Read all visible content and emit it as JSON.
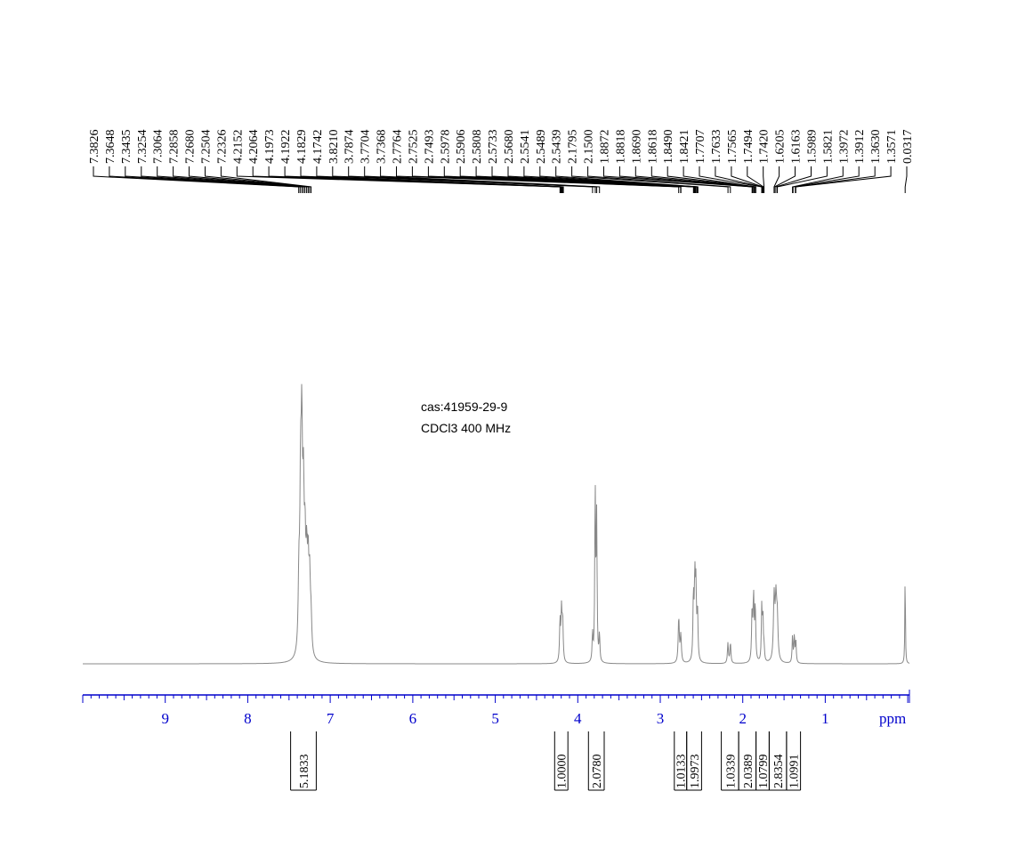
{
  "chart_data": {
    "type": "line",
    "title": "",
    "sample_lines": [
      "cas:41959-29-9",
      "CDCl3   400 MHz"
    ],
    "xlabel": "ppm",
    "ylabel": "",
    "x_reversed": true,
    "xlim": [
      10.0,
      -0.02
    ],
    "ylim": [
      0,
      1
    ],
    "grid": false,
    "x_ticks": [
      9,
      8,
      7,
      6,
      5,
      4,
      3,
      2,
      1
    ],
    "minor_tick_step": 0.1,
    "peak_labels": [
      "7.3826",
      "7.3648",
      "7.3435",
      "7.3254",
      "7.3064",
      "7.2858",
      "7.2680",
      "7.2504",
      "7.2326",
      "4.2152",
      "4.2064",
      "4.1973",
      "4.1922",
      "4.1829",
      "4.1742",
      "3.8210",
      "3.7874",
      "3.7704",
      "3.7368",
      "2.7764",
      "2.7525",
      "2.7493",
      "2.5978",
      "2.5906",
      "2.5808",
      "2.5733",
      "2.5680",
      "2.5541",
      "2.5489",
      "2.5439",
      "2.1795",
      "2.1500",
      "1.8872",
      "1.8818",
      "1.8690",
      "1.8618",
      "1.8490",
      "1.8421",
      "1.7707",
      "1.7633",
      "1.7565",
      "1.7494",
      "1.7420",
      "1.6205",
      "1.6163",
      "1.5989",
      "1.5821",
      "1.3972",
      "1.3912",
      "1.3630",
      "1.3571",
      "0.0317"
    ],
    "peaks": [
      {
        "ppm": 7.38,
        "h": 0.3,
        "w": 0.01
      },
      {
        "ppm": 7.36,
        "h": 0.65,
        "w": 0.01
      },
      {
        "ppm": 7.345,
        "h": 0.85,
        "w": 0.01
      },
      {
        "ppm": 7.325,
        "h": 0.6,
        "w": 0.01
      },
      {
        "ppm": 7.306,
        "h": 0.4,
        "w": 0.01
      },
      {
        "ppm": 7.286,
        "h": 0.35,
        "w": 0.01
      },
      {
        "ppm": 7.268,
        "h": 0.35,
        "w": 0.01
      },
      {
        "ppm": 7.25,
        "h": 0.3,
        "w": 0.01
      },
      {
        "ppm": 7.233,
        "h": 0.15,
        "w": 0.01
      },
      {
        "ppm": 4.215,
        "h": 0.18,
        "w": 0.007
      },
      {
        "ppm": 4.197,
        "h": 0.22,
        "w": 0.007
      },
      {
        "ppm": 4.183,
        "h": 0.18,
        "w": 0.007
      },
      {
        "ppm": 3.821,
        "h": 0.12,
        "w": 0.006
      },
      {
        "ppm": 3.789,
        "h": 0.76,
        "w": 0.006
      },
      {
        "ppm": 3.771,
        "h": 0.62,
        "w": 0.006
      },
      {
        "ppm": 3.737,
        "h": 0.12,
        "w": 0.006
      },
      {
        "ppm": 2.776,
        "h": 0.2,
        "w": 0.008
      },
      {
        "ppm": 2.751,
        "h": 0.12,
        "w": 0.008
      },
      {
        "ppm": 2.598,
        "h": 0.28,
        "w": 0.007
      },
      {
        "ppm": 2.581,
        "h": 0.34,
        "w": 0.007
      },
      {
        "ppm": 2.568,
        "h": 0.3,
        "w": 0.007
      },
      {
        "ppm": 2.549,
        "h": 0.22,
        "w": 0.007
      },
      {
        "ppm": 2.18,
        "h": 0.09,
        "w": 0.007
      },
      {
        "ppm": 2.15,
        "h": 0.09,
        "w": 0.007
      },
      {
        "ppm": 1.887,
        "h": 0.22,
        "w": 0.007
      },
      {
        "ppm": 1.869,
        "h": 0.28,
        "w": 0.007
      },
      {
        "ppm": 1.849,
        "h": 0.24,
        "w": 0.007
      },
      {
        "ppm": 1.77,
        "h": 0.24,
        "w": 0.006
      },
      {
        "ppm": 1.756,
        "h": 0.2,
        "w": 0.006
      },
      {
        "ppm": 1.742,
        "h": 0.06,
        "w": 0.006
      },
      {
        "ppm": 1.62,
        "h": 0.28,
        "w": 0.01
      },
      {
        "ppm": 1.598,
        "h": 0.25,
        "w": 0.01
      },
      {
        "ppm": 1.582,
        "h": 0.18,
        "w": 0.01
      },
      {
        "ppm": 1.397,
        "h": 0.12,
        "w": 0.006
      },
      {
        "ppm": 1.375,
        "h": 0.12,
        "w": 0.006
      },
      {
        "ppm": 1.357,
        "h": 0.1,
        "w": 0.006
      },
      {
        "ppm": 0.032,
        "h": 0.42,
        "w": 0.004
      }
    ],
    "integrals": [
      {
        "from": 7.48,
        "to": 7.17,
        "value": "5.1833"
      },
      {
        "from": 4.28,
        "to": 4.12,
        "value": "1.0000"
      },
      {
        "from": 3.87,
        "to": 3.68,
        "value": "2.0780"
      },
      {
        "from": 2.83,
        "to": 2.68,
        "value": "1.0133"
      },
      {
        "from": 2.68,
        "to": 2.5,
        "value": "1.9973"
      },
      {
        "from": 2.26,
        "to": 2.05,
        "value": "1.0339"
      },
      {
        "from": 2.05,
        "to": 1.84,
        "value": "2.0389"
      },
      {
        "from": 1.84,
        "to": 1.68,
        "value": "1.0799"
      },
      {
        "from": 1.68,
        "to": 1.47,
        "value": "2.8354"
      },
      {
        "from": 1.47,
        "to": 1.3,
        "value": "1.0991"
      }
    ],
    "colors": {
      "spectrum": "#888888",
      "axis": "#0000cc",
      "labels": "#000000"
    }
  }
}
